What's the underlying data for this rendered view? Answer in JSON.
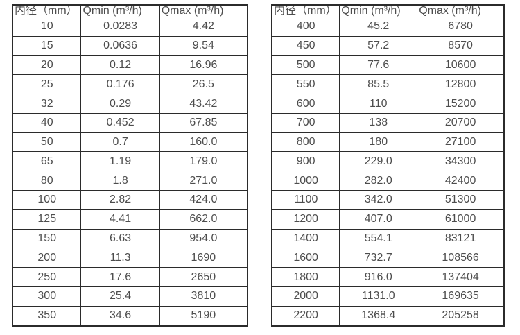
{
  "colors": {
    "background": "#ffffff",
    "text": "#4d4d4d",
    "border": "#2b2b2b"
  },
  "tables": [
    {
      "name": "small-diameter-flow-table",
      "headers": [
        "内径（mm）",
        "Qmin (m³/h)",
        "Qmax (m³/h)"
      ],
      "rows": [
        [
          "10",
          "0.0283",
          "4.42"
        ],
        [
          "15",
          "0.0636",
          "9.54"
        ],
        [
          "20",
          "0.12",
          "16.96"
        ],
        [
          "25",
          "0.176",
          "26.5"
        ],
        [
          "32",
          "0.29",
          "43.42"
        ],
        [
          "40",
          "0.452",
          "67.85"
        ],
        [
          "50",
          "0.7",
          "160.0"
        ],
        [
          "65",
          "1.19",
          "179.0"
        ],
        [
          "80",
          "1.8",
          "271.0"
        ],
        [
          "100",
          "2.82",
          "424.0"
        ],
        [
          "125",
          "4.41",
          "662.0"
        ],
        [
          "150",
          "6.63",
          "954.0"
        ],
        [
          "200",
          "11.3",
          "1690"
        ],
        [
          "250",
          "17.6",
          "2650"
        ],
        [
          "300",
          "25.4",
          "3810"
        ],
        [
          "350",
          "34.6",
          "5190"
        ]
      ]
    },
    {
      "name": "large-diameter-flow-table",
      "headers": [
        "内径（mm）",
        "Qmin (m³/h)",
        "Qmax (m³/h)"
      ],
      "rows": [
        [
          "400",
          "45.2",
          "6780"
        ],
        [
          "450",
          "57.2",
          "8570"
        ],
        [
          "500",
          "77.6",
          "10600"
        ],
        [
          "550",
          "85.5",
          "12800"
        ],
        [
          "600",
          "110",
          "15200"
        ],
        [
          "700",
          "138",
          "20700"
        ],
        [
          "800",
          "180",
          "27100"
        ],
        [
          "900",
          "229.0",
          "34300"
        ],
        [
          "1000",
          "282.0",
          "42400"
        ],
        [
          "1100",
          "342.0",
          "51300"
        ],
        [
          "1200",
          "407.0",
          "61000"
        ],
        [
          "1400",
          "554.1",
          "83121"
        ],
        [
          "1600",
          "732.7",
          "108566"
        ],
        [
          "1800",
          "916.0",
          "137404"
        ],
        [
          "2000",
          "1131.0",
          "169635"
        ],
        [
          "2200",
          "1368.4",
          "205258"
        ]
      ]
    }
  ]
}
